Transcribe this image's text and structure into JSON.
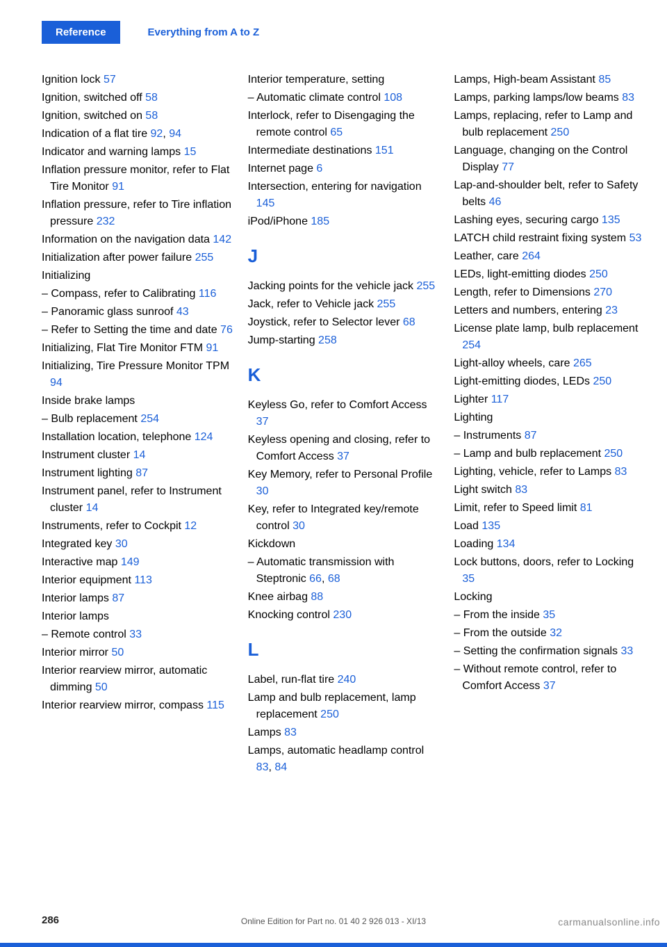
{
  "tabs": {
    "active": "Reference",
    "secondary": "Everything from A to Z"
  },
  "colors": {
    "link": "#1a5fd8",
    "text": "#000000",
    "bg": "#ffffff"
  },
  "columns": [
    {
      "items": [
        {
          "t": "Ignition lock ",
          "p": "57"
        },
        {
          "t": "Ignition, switched off ",
          "p": "58"
        },
        {
          "t": "Ignition, switched on ",
          "p": "58"
        },
        {
          "t": "Indication of a flat tire ",
          "p": "92",
          "sep": ", ",
          "p2": "94"
        },
        {
          "t": "Indicator and warning lamps ",
          "p": "15"
        },
        {
          "t": "Inflation pressure monitor, refer to Flat Tire Monitor ",
          "p": "91"
        },
        {
          "t": "Inflation pressure, refer to Tire inflation pressure ",
          "p": "232"
        },
        {
          "t": "Information on the navigation data ",
          "p": "142"
        },
        {
          "t": "Initialization after power failure ",
          "p": "255"
        },
        {
          "t": "Initializing"
        },
        {
          "t": "– Compass, refer to Calibrating ",
          "p": "116"
        },
        {
          "t": "– Panoramic glass sunroof ",
          "p": "43"
        },
        {
          "t": "– Refer to Setting the time and date ",
          "p": "76"
        },
        {
          "t": "Initializing, Flat Tire Monitor FTM ",
          "p": "91"
        },
        {
          "t": "Initializing, Tire Pressure Monitor TPM ",
          "p": "94"
        },
        {
          "t": "Inside brake lamps"
        },
        {
          "t": "– Bulb replacement ",
          "p": "254"
        },
        {
          "t": "Installation location, telephone ",
          "p": "124"
        },
        {
          "t": "Instrument cluster ",
          "p": "14"
        },
        {
          "t": "Instrument lighting ",
          "p": "87"
        },
        {
          "t": "Instrument panel, refer to Instrument cluster ",
          "p": "14"
        },
        {
          "t": "Instruments, refer to Cockpit ",
          "p": "12"
        },
        {
          "t": "Integrated key ",
          "p": "30"
        },
        {
          "t": "Interactive map ",
          "p": "149"
        },
        {
          "t": "Interior equipment ",
          "p": "113"
        },
        {
          "t": "Interior lamps ",
          "p": "87"
        },
        {
          "t": "Interior lamps"
        },
        {
          "t": "– Remote control ",
          "p": "33"
        },
        {
          "t": "Interior mirror ",
          "p": "50"
        },
        {
          "t": "Interior rearview mirror, automatic dimming ",
          "p": "50"
        },
        {
          "t": "Interior rearview mirror, compass ",
          "p": "115"
        }
      ]
    },
    {
      "items": [
        {
          "t": "Interior temperature, setting"
        },
        {
          "t": "– Automatic climate control ",
          "p": "108"
        },
        {
          "t": "Interlock, refer to Disengaging the remote control ",
          "p": "65"
        },
        {
          "t": "Intermediate destinations ",
          "p": "151"
        },
        {
          "t": "Internet page ",
          "p": "6"
        },
        {
          "t": "Intersection, entering for navigation ",
          "p": "145"
        },
        {
          "t": "iPod/iPhone ",
          "p": "185"
        },
        {
          "letter": "J"
        },
        {
          "t": "Jacking points for the vehicle jack ",
          "p": "255"
        },
        {
          "t": "Jack, refer to Vehicle jack ",
          "p": "255"
        },
        {
          "t": "Joystick, refer to Selector lever ",
          "p": "68"
        },
        {
          "t": "Jump-starting ",
          "p": "258"
        },
        {
          "letter": "K"
        },
        {
          "t": "Keyless Go, refer to Comfort Access ",
          "p": "37"
        },
        {
          "t": "Keyless opening and closing, refer to Comfort Access ",
          "p": "37"
        },
        {
          "t": "Key Memory, refer to Personal Profile ",
          "p": "30"
        },
        {
          "t": "Key, refer to Integrated key/remote control ",
          "p": "30"
        },
        {
          "t": "Kickdown"
        },
        {
          "t": "– Automatic transmission with Steptronic ",
          "p": "66",
          "sep": ", ",
          "p2": "68"
        },
        {
          "t": "Knee airbag ",
          "p": "88"
        },
        {
          "t": "Knocking control ",
          "p": "230"
        },
        {
          "letter": "L"
        },
        {
          "t": "Label, run-flat tire ",
          "p": "240"
        },
        {
          "t": "Lamp and bulb replacement, lamp replacement ",
          "p": "250"
        },
        {
          "t": "Lamps ",
          "p": "83"
        },
        {
          "t": "Lamps, automatic headlamp control ",
          "p": "83",
          "sep": ", ",
          "p2": "84"
        }
      ]
    },
    {
      "items": [
        {
          "t": "Lamps, High-beam Assistant ",
          "p": "85"
        },
        {
          "t": "Lamps, parking lamps/low beams ",
          "p": "83"
        },
        {
          "t": "Lamps, replacing, refer to Lamp and bulb replacement ",
          "p": "250"
        },
        {
          "t": "Language, changing on the Control Display ",
          "p": "77"
        },
        {
          "t": "Lap-and-shoulder belt, refer to Safety belts ",
          "p": "46"
        },
        {
          "t": "Lashing eyes, securing cargo ",
          "p": "135"
        },
        {
          "t": "LATCH child restraint fixing system ",
          "p": "53"
        },
        {
          "t": "Leather, care ",
          "p": "264"
        },
        {
          "t": "LEDs, light-emitting diodes ",
          "p": "250"
        },
        {
          "t": "Length, refer to Dimensions ",
          "p": "270"
        },
        {
          "t": "Letters and numbers, entering ",
          "p": "23"
        },
        {
          "t": "License plate lamp, bulb replacement ",
          "p": "254"
        },
        {
          "t": "Light-alloy wheels, care ",
          "p": "265"
        },
        {
          "t": "Light-emitting diodes, LEDs ",
          "p": "250"
        },
        {
          "t": "Lighter ",
          "p": "117"
        },
        {
          "t": "Lighting"
        },
        {
          "t": "– Instruments ",
          "p": "87"
        },
        {
          "t": "– Lamp and bulb replacement ",
          "p": "250"
        },
        {
          "t": "Lighting, vehicle, refer to Lamps ",
          "p": "83"
        },
        {
          "t": "Light switch ",
          "p": "83"
        },
        {
          "t": "Limit, refer to Speed limit ",
          "p": "81"
        },
        {
          "t": "Load ",
          "p": "135"
        },
        {
          "t": "Loading ",
          "p": "134"
        },
        {
          "t": "Lock buttons, doors, refer to Locking ",
          "p": "35"
        },
        {
          "t": "Locking"
        },
        {
          "t": "– From the inside ",
          "p": "35"
        },
        {
          "t": "– From the outside ",
          "p": "32"
        },
        {
          "t": "– Setting the confirmation signals ",
          "p": "33"
        },
        {
          "t": "– Without remote control, refer to Comfort Access ",
          "p": "37"
        }
      ]
    }
  ],
  "footer": {
    "page": "286",
    "line": "Online Edition for Part no. 01 40 2 926 013 - XI/13",
    "watermark": "carmanualsonline.info"
  }
}
